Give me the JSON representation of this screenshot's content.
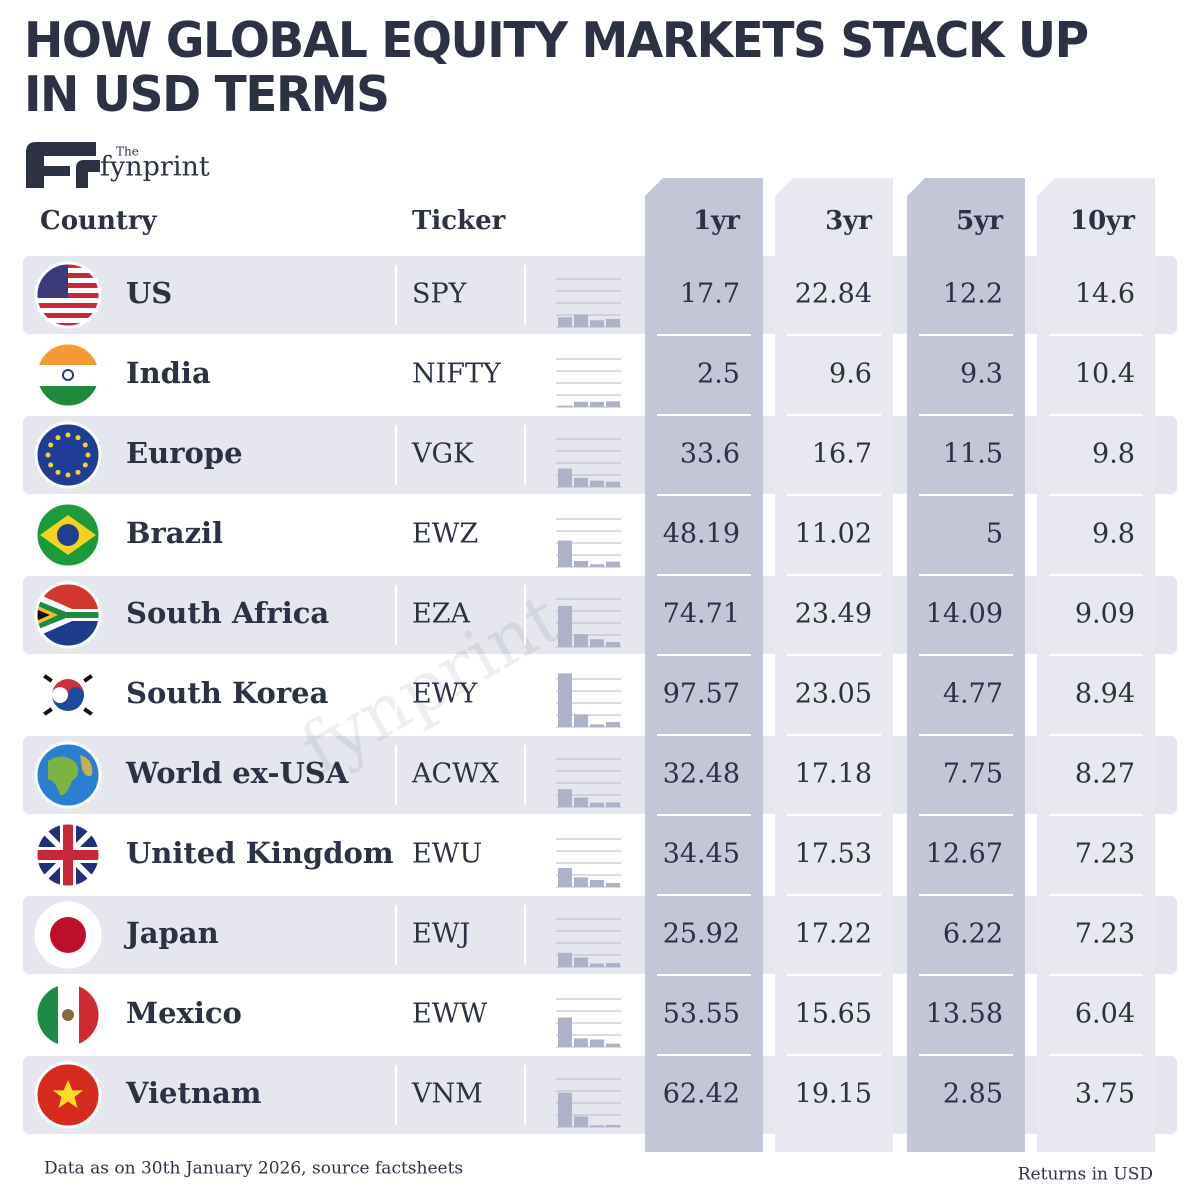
{
  "header": {
    "title": "HOW GLOBAL EQUITY MARKETS STACK UP IN USD TERMS",
    "logo_the": "The",
    "logo_name": "fynprint"
  },
  "table": {
    "columns": [
      "Country",
      "Ticker",
      "1yr",
      "3yr",
      "5yr",
      "10yr"
    ],
    "rows": [
      [
        "US",
        "SPY",
        17.7,
        22.84,
        12.2,
        14.6
      ],
      [
        "India",
        "NIFTY",
        2.5,
        9.6,
        9.3,
        10.4
      ],
      [
        "Europe",
        "VGK",
        33.6,
        16.7,
        11.5,
        9.8
      ],
      [
        "Brazil",
        "EWZ",
        48.19,
        11.02,
        5,
        9.8
      ],
      [
        "South Africa",
        "EZA",
        74.71,
        23.49,
        14.09,
        9.09
      ],
      [
        "South Korea",
        "EWY",
        97.57,
        23.05,
        4.77,
        8.94
      ],
      [
        "World ex-USA",
        "ACWX",
        32.48,
        17.18,
        7.75,
        8.27
      ],
      [
        "United Kingdom",
        "EWU",
        34.45,
        17.53,
        12.67,
        7.23
      ],
      [
        "Japan",
        "EWJ",
        25.92,
        17.22,
        6.22,
        7.23
      ],
      [
        "Mexico",
        "EWW",
        53.55,
        15.65,
        13.58,
        6.04
      ],
      [
        "Vietnam",
        "VNM",
        62.42,
        19.15,
        2.85,
        3.75
      ]
    ]
  },
  "footer": {
    "note": "Data as on 30th January 2026, source factsheets",
    "units": "Returns in USD"
  }
}
